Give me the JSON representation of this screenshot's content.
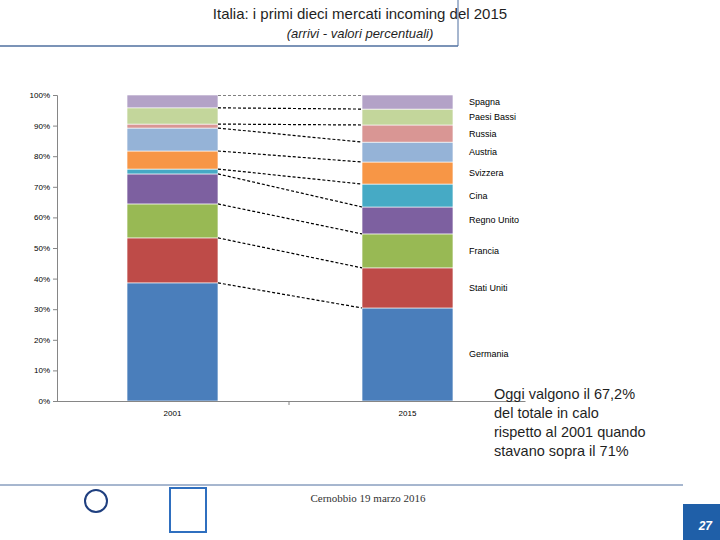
{
  "chart_data": {
    "type": "bar",
    "stacked": true,
    "title": "Italia: i primi dieci mercati incoming del 2015",
    "subtitle": "(arrivi - valori percentuali)",
    "categories": [
      "2001",
      "2015"
    ],
    "series": [
      {
        "name": "Germania",
        "color": "#4a7ebb",
        "values": [
          38.6,
          30.4
        ]
      },
      {
        "name": "Stati Uniti",
        "color": "#be4b48",
        "values": [
          14.7,
          13.1
        ]
      },
      {
        "name": "Francia",
        "color": "#98b954",
        "values": [
          11.1,
          11.1
        ]
      },
      {
        "name": "Regno Unito",
        "color": "#7d60a0",
        "values": [
          9.8,
          8.8
        ]
      },
      {
        "name": "Cina",
        "color": "#46aac5",
        "values": [
          1.6,
          7.5
        ]
      },
      {
        "name": "Svizzera",
        "color": "#f79646",
        "values": [
          5.9,
          7.2
        ]
      },
      {
        "name": "Austria",
        "color": "#95b3d7",
        "values": [
          7.5,
          6.5
        ]
      },
      {
        "name": "Russia",
        "color": "#d99694",
        "values": [
          1.3,
          5.6
        ]
      },
      {
        "name": "Paesi Bassi",
        "color": "#c3d69b",
        "values": [
          5.3,
          5.2
        ]
      },
      {
        "name": "Spagna",
        "color": "#b3a2c7",
        "values": [
          4.2,
          4.6
        ]
      }
    ],
    "ylim": [
      0,
      100
    ],
    "yticks": [
      {
        "value": 0,
        "label": "0%"
      },
      {
        "value": 10,
        "label": "10%"
      },
      {
        "value": 20,
        "label": "20%"
      },
      {
        "value": 30,
        "label": "30%"
      },
      {
        "value": 40,
        "label": "40%"
      },
      {
        "value": 50,
        "label": "50%"
      },
      {
        "value": 60,
        "label": "60%"
      },
      {
        "value": 70,
        "label": "70%"
      },
      {
        "value": 80,
        "label": "80%"
      },
      {
        "value": 90,
        "label": "90%"
      },
      {
        "value": 100,
        "label": "100%"
      }
    ],
    "annotations": [
      "Oggi valgono il 67,2%",
      "del totale in calo",
      "rispetto al 2001 quando",
      "stavano sopra il 71%"
    ]
  },
  "footer": "Cernobbio 19 marzo 2016",
  "page_number": 27
}
